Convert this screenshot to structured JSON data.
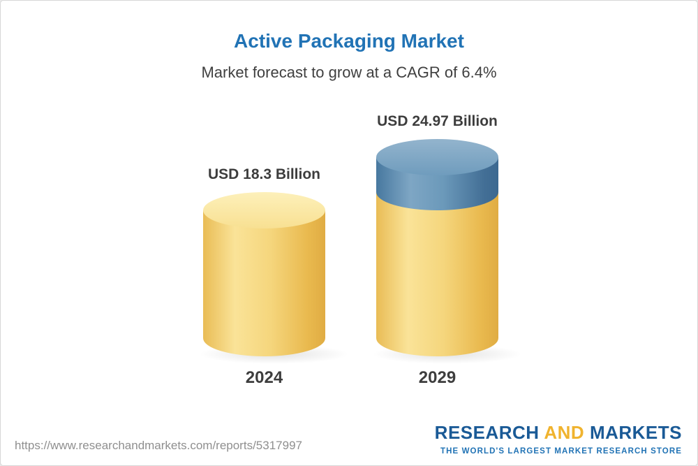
{
  "chart_data": {
    "type": "bar",
    "title": "Active Packaging Market",
    "subtitle": "Market forecast to grow at a CAGR of 6.4%",
    "unit": "USD Billion",
    "cagr": "6.4%",
    "categories": [
      "2024",
      "2029"
    ],
    "values": [
      18.3,
      24.97
    ],
    "bars": [
      {
        "category": "2024",
        "value": 18.3,
        "label": "USD 18.3 Billion",
        "color": "#F0C963"
      },
      {
        "category": "2029",
        "value": 24.97,
        "label": "USD 24.97 Billion",
        "color_base": "#F0C963",
        "color_top": "#5D8FB4"
      }
    ],
    "ylim": [
      0,
      24.97
    ],
    "legend": false,
    "grid": false,
    "xlabel": "",
    "ylabel": ""
  },
  "footer": {
    "url": "https://www.researchandmarkets.com/reports/5317997",
    "logo": {
      "research": "RESEARCH",
      "and": "AND",
      "markets": "MARKETS",
      "tagline": "THE WORLD'S LARGEST MARKET RESEARCH STORE"
    }
  },
  "colors": {
    "title_blue": "#2173b5",
    "bar_yellow": "#F0C963",
    "bar_blue": "#5D8FB4",
    "text_dark": "#3d3d3d",
    "logo_blue": "#1a5a96",
    "logo_gold": "#f0b32e"
  }
}
